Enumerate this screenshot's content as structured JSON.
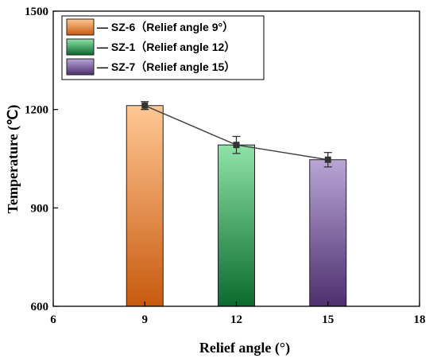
{
  "chart_data": {
    "type": "bar",
    "title": "",
    "xlabel": "Relief angle (°)",
    "ylabel": "Temperature (℃)",
    "xlim": [
      6,
      18
    ],
    "ylim": [
      600,
      1500
    ],
    "xticks": [
      "6",
      "9",
      "12",
      "15",
      "18"
    ],
    "yticks": [
      "600",
      "900",
      "1200",
      "1500"
    ],
    "grid": false,
    "legend_position": "top-left",
    "series": [
      {
        "name": "— SZ-6（Relief angle 9°）",
        "x": 9,
        "value": 1212,
        "error": 12,
        "color_top": "#ffc894",
        "color_bottom": "#c85a10"
      },
      {
        "name": "— SZ-1（Relief angle 12）",
        "x": 12,
        "value": 1092,
        "error": 26,
        "color_top": "#8fe3a8",
        "color_bottom": "#0a6a2e"
      },
      {
        "name": "— SZ-7（Relief angle 15）",
        "x": 15,
        "value": 1047,
        "error": 22,
        "color_top": "#b8a6d6",
        "color_bottom": "#4d2f6e"
      }
    ],
    "line": {
      "x": [
        9,
        12,
        15
      ],
      "y": [
        1212,
        1092,
        1047
      ],
      "color": "#444444"
    }
  }
}
